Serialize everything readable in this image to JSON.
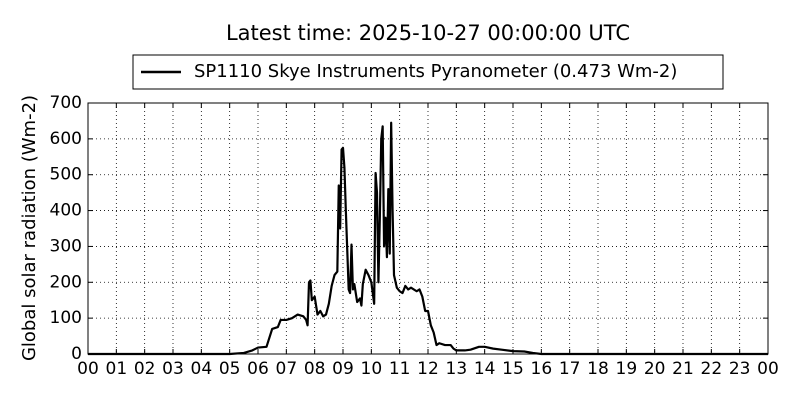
{
  "chart_data": {
    "type": "line",
    "title": "Latest time: 2025-10-27 00:00:00 UTC",
    "y_label": "Global solar radiation (Wm-2)",
    "x": [
      0,
      5,
      5.5,
      5.8,
      6.0,
      6.3,
      6.5,
      6.7,
      6.8,
      7.0,
      7.2,
      7.4,
      7.6,
      7.7,
      7.75,
      7.8,
      7.85,
      7.9,
      8.0,
      8.1,
      8.2,
      8.3,
      8.4,
      8.5,
      8.6,
      8.7,
      8.8,
      8.85,
      8.9,
      8.95,
      9.0,
      9.05,
      9.1,
      9.2,
      9.25,
      9.3,
      9.35,
      9.4,
      9.5,
      9.6,
      9.65,
      9.7,
      9.8,
      9.9,
      10.0,
      10.1,
      10.15,
      10.2,
      10.25,
      10.3,
      10.35,
      10.4,
      10.45,
      10.5,
      10.55,
      10.6,
      10.65,
      10.7,
      10.75,
      10.8,
      10.9,
      11.0,
      11.1,
      11.2,
      11.3,
      11.4,
      11.6,
      11.7,
      11.8,
      11.9,
      12.0,
      12.1,
      12.2,
      12.3,
      12.4,
      12.6,
      12.8,
      12.9,
      13.0,
      13.3,
      13.5,
      13.8,
      14.0,
      14.3,
      14.6,
      15.0,
      15.4,
      15.7,
      16.0,
      24
    ],
    "series": [
      {
        "name": "SP1110 Skye Instruments Pyranometer (0.473 Wm-2)",
        "color": "#000000",
        "values": [
          0,
          0,
          3,
          10,
          18,
          20,
          70,
          75,
          95,
          95,
          100,
          110,
          105,
          95,
          80,
          200,
          205,
          150,
          160,
          110,
          120,
          105,
          110,
          140,
          190,
          220,
          230,
          470,
          350,
          570,
          575,
          520,
          400,
          180,
          170,
          305,
          180,
          195,
          145,
          155,
          135,
          195,
          235,
          220,
          200,
          140,
          505,
          450,
          200,
          380,
          600,
          635,
          300,
          380,
          270,
          460,
          280,
          645,
          400,
          220,
          185,
          175,
          170,
          190,
          180,
          185,
          175,
          180,
          160,
          120,
          120,
          80,
          60,
          25,
          30,
          25,
          25,
          15,
          10,
          10,
          12,
          20,
          20,
          15,
          12,
          8,
          7,
          3,
          0,
          0
        ]
      }
    ],
    "xlim": [
      0,
      24
    ],
    "xticks": [
      {
        "value": 0,
        "label": "00"
      },
      {
        "value": 1,
        "label": "01"
      },
      {
        "value": 2,
        "label": "02"
      },
      {
        "value": 3,
        "label": "03"
      },
      {
        "value": 4,
        "label": "04"
      },
      {
        "value": 5,
        "label": "05"
      },
      {
        "value": 6,
        "label": "06"
      },
      {
        "value": 7,
        "label": "07"
      },
      {
        "value": 8,
        "label": "08"
      },
      {
        "value": 9,
        "label": "09"
      },
      {
        "value": 10,
        "label": "10"
      },
      {
        "value": 11,
        "label": "11"
      },
      {
        "value": 12,
        "label": "12"
      },
      {
        "value": 13,
        "label": "13"
      },
      {
        "value": 14,
        "label": "14"
      },
      {
        "value": 15,
        "label": "15"
      },
      {
        "value": 16,
        "label": "16"
      },
      {
        "value": 17,
        "label": "17"
      },
      {
        "value": 18,
        "label": "18"
      },
      {
        "value": 19,
        "label": "19"
      },
      {
        "value": 20,
        "label": "20"
      },
      {
        "value": 21,
        "label": "21"
      },
      {
        "value": 22,
        "label": "22"
      },
      {
        "value": 23,
        "label": "23"
      },
      {
        "value": 24,
        "label": "00"
      }
    ],
    "ylim": [
      0,
      700
    ],
    "yticks": [
      0,
      100,
      200,
      300,
      400,
      500,
      600,
      700
    ],
    "grid": true,
    "legend": "top"
  }
}
